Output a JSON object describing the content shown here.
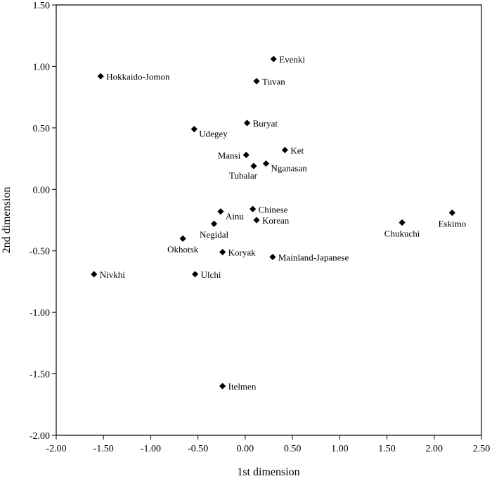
{
  "chart_data": {
    "type": "scatter",
    "title": "",
    "xlabel": "1st dimension",
    "ylabel": "2nd dimension",
    "xlim": [
      -2.0,
      2.5
    ],
    "ylim": [
      -2.0,
      1.5
    ],
    "xticks": [
      -2.0,
      -1.5,
      -1.0,
      -0.5,
      0.0,
      0.5,
      1.0,
      1.5,
      2.0,
      2.5
    ],
    "yticks": [
      -2.0,
      -1.5,
      -1.0,
      -0.5,
      0.0,
      0.5,
      1.0,
      1.5
    ],
    "xtick_labels": [
      "-2.00",
      "-1.50",
      "-1.00",
      "-0.50",
      "0.00",
      "0.50",
      "1.00",
      "1.50",
      "2.00",
      "2.50"
    ],
    "ytick_labels": [
      "-2.00",
      "-1.50",
      "-1.00",
      "-0.50",
      "0.00",
      "0.50",
      "1.00",
      "1.50"
    ],
    "grid": false,
    "marker": "diamond",
    "marker_color": "#000000",
    "points": [
      {
        "label": "Evenki",
        "x": 0.3,
        "y": 1.06,
        "label_side": "right"
      },
      {
        "label": "Hokkaido-Jomon",
        "x": -1.53,
        "y": 0.92,
        "label_side": "right"
      },
      {
        "label": "Tuvan",
        "x": 0.12,
        "y": 0.88,
        "label_side": "right"
      },
      {
        "label": "Buryat",
        "x": 0.02,
        "y": 0.54,
        "label_side": "right"
      },
      {
        "label": "Udegey",
        "x": -0.54,
        "y": 0.49,
        "label_side": "below-right"
      },
      {
        "label": "Ket",
        "x": 0.42,
        "y": 0.32,
        "label_side": "right"
      },
      {
        "label": "Mansi",
        "x": 0.01,
        "y": 0.28,
        "label_side": "left"
      },
      {
        "label": "Nganasan",
        "x": 0.22,
        "y": 0.21,
        "label_side": "below-right"
      },
      {
        "label": "Tubalar",
        "x": 0.09,
        "y": 0.19,
        "label_side": "below-left"
      },
      {
        "label": "Chinese",
        "x": 0.08,
        "y": -0.16,
        "label_side": "right"
      },
      {
        "label": "Ainu",
        "x": -0.26,
        "y": -0.18,
        "label_side": "below-right"
      },
      {
        "label": "Korean",
        "x": 0.12,
        "y": -0.25,
        "label_side": "right"
      },
      {
        "label": "Negidal",
        "x": -0.33,
        "y": -0.28,
        "label_side": "below"
      },
      {
        "label": "Okhotsk",
        "x": -0.66,
        "y": -0.4,
        "label_side": "below"
      },
      {
        "label": "Koryak",
        "x": -0.24,
        "y": -0.51,
        "label_side": "right"
      },
      {
        "label": "Mainland-Japanese",
        "x": 0.29,
        "y": -0.55,
        "label_side": "right"
      },
      {
        "label": "Nivkhi",
        "x": -1.6,
        "y": -0.69,
        "label_side": "right"
      },
      {
        "label": "Ulchi",
        "x": -0.53,
        "y": -0.69,
        "label_side": "right"
      },
      {
        "label": "Chukuchi",
        "x": 1.66,
        "y": -0.27,
        "label_side": "below"
      },
      {
        "label": "Eskimo",
        "x": 2.19,
        "y": -0.19,
        "label_side": "below"
      },
      {
        "label": "Itelmen",
        "x": -0.24,
        "y": -1.6,
        "label_side": "right"
      }
    ]
  }
}
